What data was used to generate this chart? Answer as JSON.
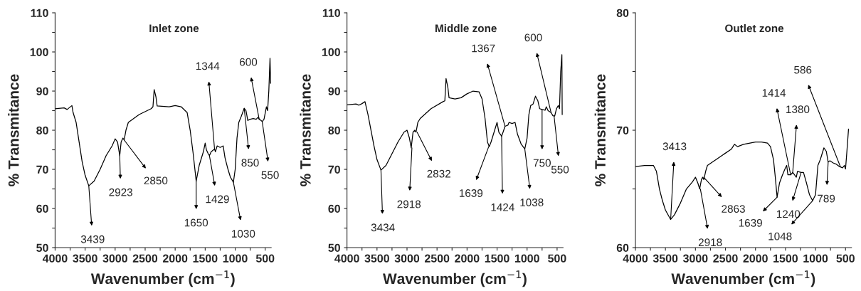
{
  "chart_data": [
    {
      "type": "line",
      "title": "Inlet zone",
      "xlabel": "Wavenumber (cm$^{−1}$)",
      "ylabel": "% Transmitance",
      "xlim": [
        4000,
        400
      ],
      "ylim": [
        50,
        110
      ],
      "xticks": [
        4000,
        {
          "value": 3750,
          "label": null
        },
        3500,
        {
          "value": 3250,
          "label": null
        },
        3000,
        {
          "value": 2750,
          "label": null
        },
        2500,
        {
          "value": 2250,
          "label": null
        },
        2000,
        {
          "value": 1750,
          "label": null
        },
        1500,
        {
          "value": 1250,
          "label": null
        },
        1000,
        {
          "value": 750,
          "label": null
        },
        500
      ],
      "yticks": [
        50,
        {
          "value": 55,
          "label": null
        },
        60,
        {
          "value": 65,
          "label": null
        },
        70,
        {
          "value": 75,
          "label": null
        },
        80,
        {
          "value": 85,
          "label": null
        },
        90,
        {
          "value": 95,
          "label": null
        },
        100,
        {
          "value": 105,
          "label": null
        },
        110
      ],
      "grid": false,
      "series": [
        {
          "color": "#000000",
          "x": [
            4000,
            3850,
            3800,
            3760,
            3720,
            3700,
            3650,
            3600,
            3550,
            3500,
            3439,
            3350,
            3250,
            3150,
            3050,
            3000,
            2960,
            2923,
            2900,
            2870,
            2850,
            2820,
            2780,
            2600,
            2400,
            2370,
            2350,
            2320,
            2300,
            2100,
            2000,
            1900,
            1800,
            1750,
            1700,
            1650,
            1600,
            1560,
            1530,
            1500,
            1480,
            1450,
            1429,
            1400,
            1344,
            1330,
            1300,
            1250,
            1200,
            1170,
            1120,
            1080,
            1030,
            1000,
            970,
            940,
            900,
            850,
            820,
            790,
            750,
            700,
            650,
            620,
            600,
            570,
            550,
            520,
            480,
            460,
            440,
            420,
            410
          ],
          "values": [
            85.5,
            85.7,
            85.3,
            85.8,
            86.3,
            84.5,
            82,
            77,
            72,
            68.5,
            65.8,
            67,
            70,
            73.5,
            76,
            77.8,
            77,
            73.5,
            77,
            78,
            77.5,
            80,
            82,
            84,
            85.5,
            86,
            90.4,
            88.5,
            86.2,
            86,
            86.3,
            86,
            84.5,
            80,
            74,
            67,
            71,
            73,
            74.5,
            76.7,
            75,
            74,
            73.5,
            74.5,
            75.2,
            74.5,
            76,
            75.6,
            76,
            73,
            70,
            68,
            66.7,
            70,
            78,
            82,
            83.5,
            85.6,
            85,
            82.5,
            82.8,
            83,
            82.8,
            83.3,
            82.8,
            82.5,
            82.2,
            82.8,
            86,
            85,
            90,
            98.4,
            92
          ]
        }
      ],
      "annotations": [
        {
          "text": "3439",
          "x": 3439,
          "y": 65.8
        },
        {
          "text": "2923",
          "x": 2923,
          "y": 73.5
        },
        {
          "text": "2850",
          "x": 2850,
          "y": 77.5
        },
        {
          "text": "1650",
          "x": 1650,
          "y": 67
        },
        {
          "text": "1429",
          "x": 1429,
          "y": 73.5
        },
        {
          "text": "1344",
          "x": 1344,
          "y": 75.2
        },
        {
          "text": "1030",
          "x": 1030,
          "y": 66.7
        },
        {
          "text": "850",
          "x": 850,
          "y": 85.6
        },
        {
          "text": "600",
          "x": 600,
          "y": 82.8
        },
        {
          "text": "550",
          "x": 550,
          "y": 82.2
        }
      ]
    },
    {
      "type": "line",
      "title": "Middle zone",
      "xlabel": "Wavenumber (cm$^{−1}$)",
      "ylabel": "% Transmitance",
      "xlim": [
        4000,
        400
      ],
      "ylim": [
        50,
        110
      ],
      "xticks": [
        4000,
        {
          "value": 3750,
          "label": null
        },
        3500,
        {
          "value": 3250,
          "label": null
        },
        3000,
        {
          "value": 2750,
          "label": null
        },
        2500,
        {
          "value": 2250,
          "label": null
        },
        2000,
        {
          "value": 1750,
          "label": null
        },
        1500,
        {
          "value": 1250,
          "label": null
        },
        1000,
        {
          "value": 750,
          "label": null
        },
        500
      ],
      "yticks": [
        50,
        {
          "value": 55,
          "label": null
        },
        60,
        {
          "value": 65,
          "label": null
        },
        70,
        {
          "value": 75,
          "label": null
        },
        80,
        {
          "value": 85,
          "label": null
        },
        90,
        {
          "value": 95,
          "label": null
        },
        100,
        {
          "value": 105,
          "label": null
        },
        110
      ],
      "grid": false,
      "series": [
        {
          "color": "#000000",
          "x": [
            4000,
            3850,
            3800,
            3750,
            3700,
            3650,
            3600,
            3550,
            3500,
            3434,
            3350,
            3250,
            3150,
            3050,
            3000,
            2960,
            2930,
            2900,
            2870,
            2850,
            2820,
            2780,
            2600,
            2400,
            2370,
            2350,
            2320,
            2300,
            2200,
            2100,
            2000,
            1900,
            1800,
            1750,
            1700,
            1660,
            1630,
            1600,
            1550,
            1500,
            1470,
            1424,
            1400,
            1367,
            1320,
            1300,
            1250,
            1200,
            1160,
            1100,
            1038,
            1000,
            970,
            940,
            900,
            860,
            820,
            790,
            750,
            700,
            680,
            650,
            600,
            570,
            540,
            510,
            480,
            460,
            440,
            420,
            415
          ],
          "values": [
            86.5,
            86.7,
            86.4,
            86.8,
            87.3,
            84,
            80,
            76,
            72.5,
            69.8,
            71,
            74,
            77,
            79.5,
            80,
            78,
            75.5,
            79.5,
            80,
            79.5,
            82,
            83,
            85.5,
            87.3,
            87.5,
            93.2,
            91,
            88.3,
            88,
            88.3,
            89.3,
            90,
            89.8,
            88,
            83,
            77,
            75.8,
            77,
            79.5,
            82,
            79.5,
            78.5,
            79.5,
            81,
            81.3,
            82,
            81.7,
            82,
            79,
            76.5,
            75.2,
            78,
            84,
            86.3,
            86.7,
            88.7,
            87.5,
            85.5,
            85.3,
            85.1,
            86,
            85,
            84.5,
            83.7,
            83.6,
            85.5,
            86.3,
            85.5,
            95,
            99.3,
            84
          ]
        }
      ],
      "annotations": [
        {
          "text": "3434",
          "x": 3434,
          "y": 69.8
        },
        {
          "text": "2918",
          "x": 2918,
          "y": 75.5
        },
        {
          "text": "2832",
          "x": 2832,
          "y": 79.5
        },
        {
          "text": "1639",
          "x": 1639,
          "y": 75.8
        },
        {
          "text": "1424",
          "x": 1424,
          "y": 78.5
        },
        {
          "text": "1367",
          "x": 1367,
          "y": 81
        },
        {
          "text": "1038",
          "x": 1038,
          "y": 75.2
        },
        {
          "text": "750",
          "x": 750,
          "y": 85.3
        },
        {
          "text": "600",
          "x": 600,
          "y": 84.5
        },
        {
          "text": "550",
          "x": 550,
          "y": 83.6
        }
      ]
    },
    {
      "type": "line",
      "title": "Outlet zone",
      "xlabel": "Wavenumber (cm$^{−1}$)",
      "ylabel": "% Transmitance",
      "xlim": [
        4000,
        400
      ],
      "ylim": [
        60,
        80
      ],
      "xticks": [
        4000,
        {
          "value": 3750,
          "label": null
        },
        3500,
        {
          "value": 3250,
          "label": null
        },
        3000,
        {
          "value": 2750,
          "label": null
        },
        2500,
        {
          "value": 2250,
          "label": null
        },
        2000,
        {
          "value": 1750,
          "label": null
        },
        1500,
        {
          "value": 1250,
          "label": null
        },
        1000,
        {
          "value": 750,
          "label": null
        },
        500
      ],
      "yticks": [
        60,
        {
          "value": 65,
          "label": null
        },
        70,
        {
          "value": 75,
          "label": null
        },
        80
      ],
      "grid": false,
      "series": [
        {
          "color": "#000000",
          "x": [
            4000,
            3850,
            3750,
            3700,
            3650,
            3600,
            3550,
            3500,
            3413,
            3350,
            3250,
            3150,
            3050,
            3000,
            2960,
            2930,
            2900,
            2880,
            2860,
            2830,
            2800,
            2600,
            2400,
            2350,
            2300,
            2200,
            2000,
            1900,
            1800,
            1750,
            1700,
            1670,
            1640,
            1600,
            1550,
            1500,
            1480,
            1460,
            1414,
            1380,
            1350,
            1320,
            1300,
            1240,
            1200,
            1150,
            1100,
            1048,
            1000,
            960,
            920,
            860,
            820,
            790,
            760,
            700,
            650,
            600,
            550,
            520,
            500,
            480,
            450
          ],
          "values": [
            66.9,
            67,
            67,
            67,
            66.5,
            65,
            64,
            63.2,
            62.4,
            62.8,
            63.8,
            65,
            65.6,
            66,
            65.5,
            65,
            65.8,
            66,
            65.8,
            66.5,
            67,
            67.7,
            68.4,
            68.8,
            68.6,
            68.8,
            69,
            69,
            68.9,
            68.6,
            67.5,
            66,
            64.3,
            65.5,
            66.2,
            66.8,
            67,
            66.2,
            66.2,
            66.4,
            66.2,
            66,
            66.5,
            66.4,
            66.4,
            65.5,
            64.5,
            64,
            64.5,
            67,
            67.5,
            68.5,
            68.2,
            67.3,
            67.4,
            67.2,
            67.1,
            66.9,
            66.8,
            67,
            66.7,
            68,
            70.1
          ]
        }
      ],
      "annotations": [
        {
          "text": "3413",
          "x": 3413,
          "y": 62.4
        },
        {
          "text": "2918",
          "x": 2918,
          "y": 65
        },
        {
          "text": "2863",
          "x": 2863,
          "y": 66
        },
        {
          "text": "1639",
          "x": 1639,
          "y": 64.3
        },
        {
          "text": "1414",
          "x": 1414,
          "y": 66.2
        },
        {
          "text": "1380",
          "x": 1380,
          "y": 66.4
        },
        {
          "text": "1240",
          "x": 1240,
          "y": 66.4
        },
        {
          "text": "1048",
          "x": 1048,
          "y": 64
        },
        {
          "text": "789",
          "x": 789,
          "y": 67.3
        },
        {
          "text": "586",
          "x": 586,
          "y": 66.9
        }
      ]
    }
  ]
}
